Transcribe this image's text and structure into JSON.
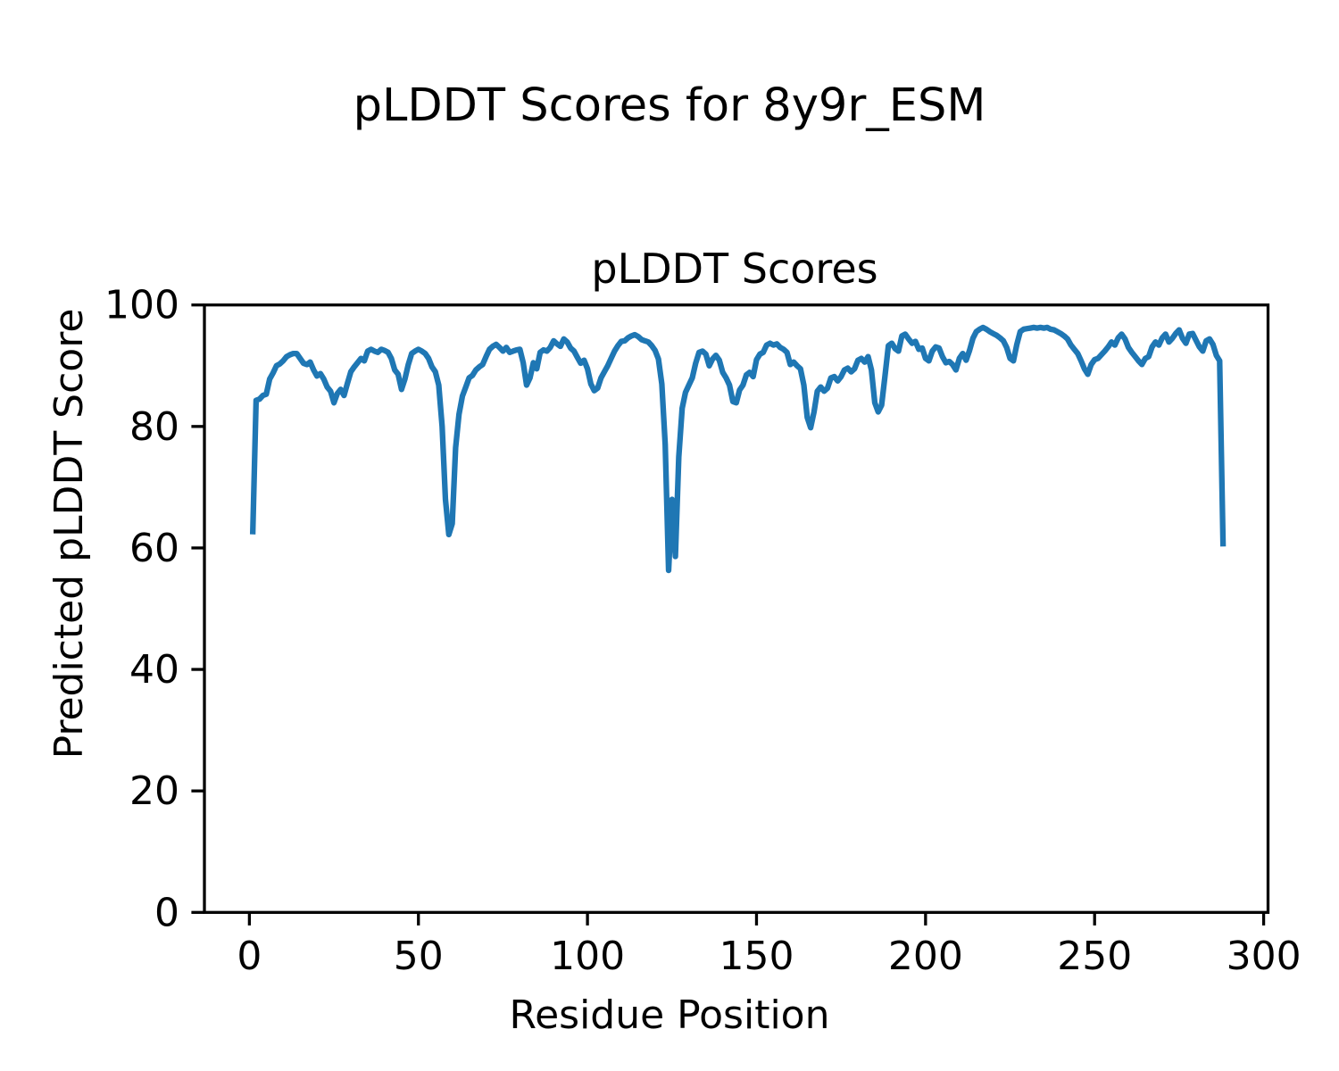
{
  "figure": {
    "suptitle": "pLDDT Scores for 8y9r_ESM"
  },
  "chart_data": {
    "type": "line",
    "suptitle": "pLDDT Scores for 8y9r_ESM",
    "title": "pLDDT Scores",
    "xlabel": "Residue Position",
    "ylabel": "Predicted pLDDT Score",
    "x_ticks": [
      0,
      50,
      100,
      150,
      200,
      250,
      300
    ],
    "y_ticks": [
      0,
      20,
      40,
      60,
      80,
      100
    ],
    "xlim": [
      -13.3,
      301.3
    ],
    "ylim": [
      0,
      100
    ],
    "grid": false,
    "legend": "none",
    "line_color": "#1f77b4",
    "series_name": "pLDDT",
    "x_start": 1,
    "values": [
      62.7,
      84.3,
      84.5,
      85.1,
      85.3,
      87.8,
      88.8,
      90.0,
      90.3,
      90.8,
      91.5,
      91.8,
      92.0,
      92.0,
      91.2,
      90.4,
      90.2,
      90.6,
      89.3,
      88.3,
      88.7,
      87.8,
      86.5,
      85.8,
      83.9,
      85.4,
      86.1,
      85.1,
      87.1,
      89.0,
      89.8,
      90.5,
      91.2,
      90.8,
      92.4,
      92.7,
      92.4,
      92.2,
      92.7,
      92.5,
      92.2,
      91.2,
      89.3,
      88.6,
      86.1,
      87.8,
      90.2,
      92.0,
      92.4,
      92.7,
      92.4,
      92.0,
      91.2,
      89.8,
      89.0,
      86.8,
      80.0,
      68.0,
      62.2,
      64.0,
      76.5,
      82.0,
      85.0,
      86.5,
      88.0,
      88.4,
      89.3,
      89.8,
      90.2,
      91.5,
      92.7,
      93.2,
      93.5,
      93.0,
      92.4,
      93.0,
      92.2,
      92.4,
      92.6,
      92.7,
      90.5,
      86.8,
      88.0,
      90.5,
      89.5,
      92.2,
      92.6,
      92.4,
      93.0,
      94.1,
      93.6,
      93.2,
      94.4,
      93.9,
      92.9,
      92.4,
      91.4,
      90.4,
      90.9,
      89.5,
      87.0,
      85.9,
      86.3,
      88.0,
      89.0,
      90.0,
      91.2,
      92.4,
      93.3,
      94.0,
      94.1,
      94.6,
      94.9,
      95.1,
      94.8,
      94.3,
      94.1,
      93.9,
      93.3,
      92.5,
      91.1,
      87.0,
      77.0,
      56.3,
      68.0,
      58.6,
      75.0,
      83.0,
      85.6,
      86.8,
      88.0,
      90.4,
      92.2,
      92.4,
      91.9,
      90.0,
      91.1,
      91.7,
      90.9,
      88.9,
      88.0,
      86.8,
      84.1,
      83.9,
      86.0,
      86.8,
      88.5,
      88.9,
      88.2,
      91.0,
      91.9,
      92.2,
      93.4,
      93.7,
      93.4,
      93.6,
      93.0,
      92.7,
      92.2,
      90.2,
      90.6,
      90.0,
      89.5,
      86.8,
      81.5,
      79.8,
      82.4,
      85.8,
      86.5,
      85.8,
      86.3,
      88.0,
      88.2,
      87.5,
      88.2,
      89.3,
      89.6,
      89.0,
      89.5,
      90.9,
      91.2,
      90.6,
      91.5,
      89.3,
      83.9,
      82.4,
      83.5,
      88.3,
      93.3,
      93.7,
      92.8,
      92.4,
      94.9,
      95.2,
      94.4,
      93.7,
      94.0,
      92.7,
      92.9,
      91.2,
      90.8,
      92.4,
      93.1,
      92.9,
      91.5,
      90.5,
      90.7,
      90.2,
      89.3,
      91.2,
      92.0,
      90.9,
      92.5,
      94.5,
      95.6,
      96.0,
      96.3,
      96.0,
      95.6,
      95.3,
      95.0,
      94.6,
      94.1,
      93.0,
      91.2,
      90.8,
      93.5,
      95.6,
      96.0,
      96.1,
      96.2,
      96.3,
      96.2,
      96.3,
      96.2,
      96.3,
      96.0,
      95.9,
      95.6,
      95.3,
      94.9,
      94.4,
      93.4,
      92.7,
      92.0,
      90.8,
      89.5,
      88.6,
      90.2,
      91.0,
      91.2,
      91.8,
      92.4,
      93.1,
      93.9,
      93.4,
      94.6,
      95.2,
      94.4,
      93.0,
      92.2,
      91.5,
      90.8,
      90.2,
      91.2,
      91.5,
      93.1,
      93.9,
      93.4,
      94.6,
      95.2,
      93.9,
      94.5,
      95.3,
      95.9,
      94.5,
      93.7,
      95.2,
      95.3,
      94.2,
      93.1,
      92.4,
      94.1,
      94.4,
      93.5,
      91.7,
      90.8,
      60.7
    ]
  }
}
